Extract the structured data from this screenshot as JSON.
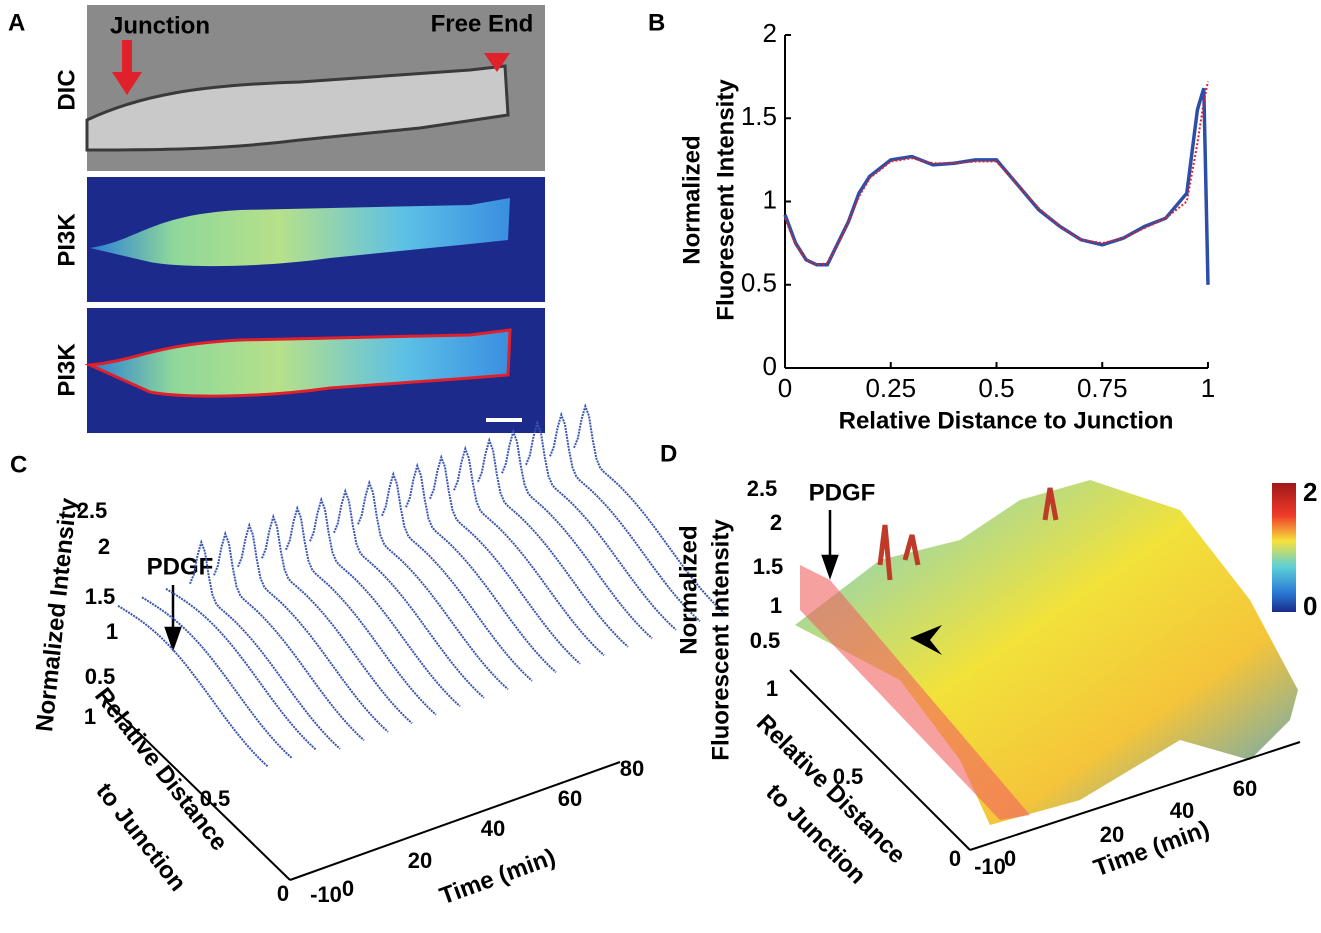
{
  "panel_a": {
    "label": "A",
    "arrow_labels": [
      "Junction",
      "Free End"
    ],
    "row_labels": [
      "DIC",
      "PI3K",
      "PI3K"
    ]
  },
  "chart_data": {
    "type": "line",
    "label": "B",
    "ylabel": [
      "Normalized",
      "Fluorescent Intensity"
    ],
    "xlabel": "Relative Distance to Junction",
    "x": [
      0,
      0.025,
      0.05,
      0.075,
      0.1,
      0.125,
      0.15,
      0.175,
      0.2,
      0.25,
      0.3,
      0.35,
      0.4,
      0.45,
      0.5,
      0.55,
      0.6,
      0.65,
      0.7,
      0.75,
      0.8,
      0.85,
      0.9,
      0.95,
      0.975,
      0.99,
      1
    ],
    "series": [
      {
        "color": "#2b4fa8",
        "values": [
          0.92,
          0.75,
          0.65,
          0.62,
          0.62,
          0.75,
          0.88,
          1.05,
          1.15,
          1.25,
          1.27,
          1.22,
          1.23,
          1.25,
          1.25,
          1.1,
          0.95,
          0.85,
          0.77,
          0.74,
          0.78,
          0.85,
          0.9,
          1.05,
          1.55,
          1.68,
          0.5
        ]
      },
      {
        "color": "#e0202a",
        "style": "dotted",
        "values": [
          0.9,
          0.74,
          0.65,
          0.62,
          0.63,
          0.74,
          0.88,
          1.03,
          1.14,
          1.24,
          1.26,
          1.23,
          1.23,
          1.24,
          1.24,
          1.1,
          0.96,
          0.85,
          0.77,
          0.75,
          0.78,
          0.84,
          0.9,
          1.0,
          1.35,
          1.6,
          1.72
        ]
      }
    ],
    "xlim": [
      0,
      1
    ],
    "ylim": [
      0,
      2
    ],
    "xticks": [
      0,
      0.25,
      0.5,
      0.75,
      1
    ],
    "yticks": [
      0,
      0.5,
      1,
      1.5,
      2
    ]
  },
  "panel_c": {
    "label": "C",
    "zlabel": "Normalized Intensity",
    "annotation": "PDGF",
    "zticks": [
      "2.5",
      "2",
      "1.5",
      "1",
      "0.5"
    ],
    "yticks": [
      "1",
      "0.5",
      "0"
    ],
    "ylabel": [
      "Relative Distance",
      "to Junction"
    ],
    "xticks": [
      "-10",
      "0",
      "20",
      "40",
      "60",
      "80"
    ],
    "xlabel": "Time (min)"
  },
  "panel_d": {
    "label": "D",
    "zlabel": [
      "Normalized",
      "Fluorescent Intensity"
    ],
    "annotation": "PDGF",
    "zticks": [
      "2.5",
      "2",
      "1.5",
      "1",
      "0.5"
    ],
    "colorbar_ticks": [
      "2",
      "0"
    ],
    "yticks": [
      "1",
      "0.5",
      "0"
    ],
    "ylabel": [
      "Relative Distance",
      "to Junction"
    ],
    "xticks": [
      "-10",
      "0",
      "20",
      "40",
      "60"
    ],
    "xlabel": "Time (min)"
  }
}
